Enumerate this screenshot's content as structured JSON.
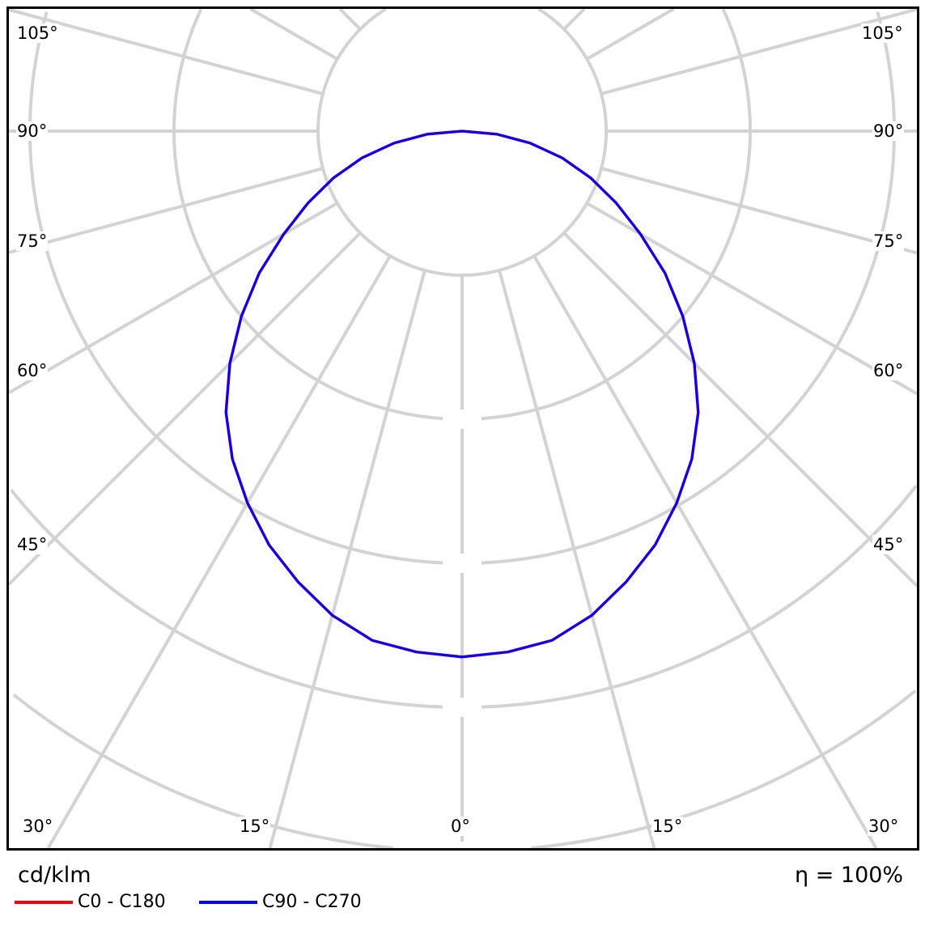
{
  "chart_data": {
    "type": "polar",
    "unit_label": "cd/klm",
    "efficiency_label": "η = 100%",
    "angle_labels_left": [
      "105°",
      "90°",
      "75°",
      "60°",
      "45°"
    ],
    "angle_labels_right": [
      "105°",
      "90°",
      "75°",
      "60°",
      "45°"
    ],
    "angle_labels_bottom": [
      "30°",
      "15°",
      "0°",
      "15°",
      "30°"
    ],
    "grid": true,
    "spoke_step_deg": 15,
    "legend_placement": "bottom-left",
    "angles_deg": [
      0,
      5,
      10,
      15,
      20,
      25,
      30,
      35,
      40,
      45,
      50,
      55,
      60,
      65,
      70,
      75,
      80,
      85,
      90
    ],
    "series": [
      {
        "name": "C0 - C180",
        "color": "#ff0000",
        "values": [
          365,
          363,
          359,
          348,
          333,
          317,
          298,
          278,
          255,
          228,
          200,
          172,
          143,
          118,
          95,
          72,
          48,
          24,
          0
        ]
      },
      {
        "name": "C90 - C270",
        "color": "#0000ff",
        "values": [
          365,
          363,
          359,
          348,
          333,
          317,
          298,
          278,
          255,
          228,
          200,
          172,
          143,
          118,
          95,
          72,
          48,
          24,
          0
        ]
      }
    ],
    "ring_step": 100
  }
}
